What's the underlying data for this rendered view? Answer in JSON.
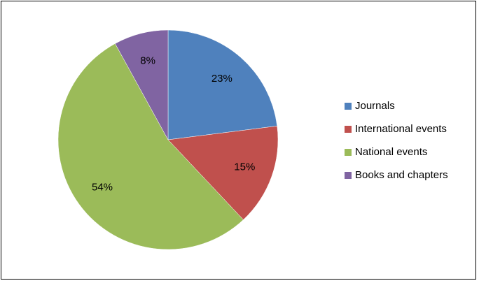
{
  "chart_data": {
    "type": "pie",
    "categories": [
      "Journals",
      "International events",
      "National events",
      "Books and chapters"
    ],
    "values": [
      23,
      15,
      54,
      8
    ],
    "value_labels": [
      "23%",
      "15%",
      "54%",
      "8%"
    ],
    "colors": [
      "#4f81bd",
      "#c0504d",
      "#9bbb59",
      "#8064a2"
    ],
    "legend": "right"
  }
}
